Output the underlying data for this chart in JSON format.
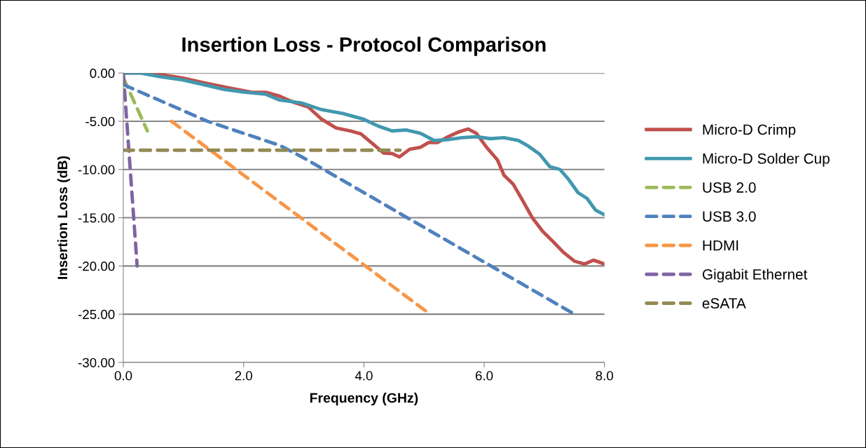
{
  "chart_data": {
    "type": "line",
    "title": "Insertion Loss - Protocol Comparison",
    "xlabel": "Frequency (GHz)",
    "ylabel": "Insertion Loss (dB)",
    "xlim": [
      0,
      8
    ],
    "xticks": [
      {
        "value": 0,
        "label": "0.0"
      },
      {
        "value": 2,
        "label": "2.0"
      },
      {
        "value": 4,
        "label": "4.0"
      },
      {
        "value": 6,
        "label": "6.0"
      },
      {
        "value": 8,
        "label": "8.0"
      }
    ],
    "ylim": [
      -30,
      0
    ],
    "yticks": [
      {
        "value": -30,
        "label": "-30.00"
      },
      {
        "value": -25,
        "label": "-25.00"
      },
      {
        "value": -20,
        "label": "-20.00"
      },
      {
        "value": -15,
        "label": "-15.00"
      },
      {
        "value": -10,
        "label": "-10.00"
      },
      {
        "value": -5,
        "label": "-5.00"
      },
      {
        "value": 0,
        "label": "0.00"
      }
    ],
    "grid": "y",
    "legend": "right",
    "marker": "none",
    "series": [
      {
        "name": "Micro-D Crimp",
        "color": "#c0504d",
        "line_style": "solid",
        "x": [
          0,
          0.45,
          0.98,
          1.33,
          1.8,
          2.14,
          2.37,
          2.6,
          2.84,
          3.07,
          3.3,
          3.54,
          3.77,
          3.95,
          4.12,
          4.33,
          4.47,
          4.59,
          4.76,
          4.94,
          5.08,
          5.23,
          5.4,
          5.58,
          5.73,
          5.87,
          6.04,
          6.22,
          6.33,
          6.48,
          6.62,
          6.8,
          6.97,
          7.15,
          7.32,
          7.5,
          7.67,
          7.82,
          8.0
        ],
        "values": [
          0,
          0,
          -0.5,
          -1.0,
          -1.6,
          -2.0,
          -2.0,
          -2.4,
          -3.05,
          -3.5,
          -4.8,
          -5.7,
          -6.0,
          -6.3,
          -7.2,
          -8.3,
          -8.35,
          -8.7,
          -7.9,
          -7.7,
          -7.2,
          -7.2,
          -6.6,
          -6.1,
          -5.8,
          -6.25,
          -7.7,
          -9.0,
          -10.6,
          -11.5,
          -13.0,
          -15.0,
          -16.4,
          -17.5,
          -18.6,
          -19.5,
          -19.8,
          -19.4,
          -19.8
        ]
      },
      {
        "name": "Micro-D Solder Cup",
        "color": "#4198af",
        "line_style": "solid",
        "x": [
          0,
          0.28,
          0.63,
          0.98,
          1.33,
          1.68,
          2.03,
          2.37,
          2.6,
          2.96,
          3.3,
          3.65,
          4.0,
          4.24,
          4.47,
          4.7,
          4.94,
          5.17,
          5.4,
          5.63,
          5.87,
          6.1,
          6.33,
          6.57,
          6.74,
          6.92,
          7.09,
          7.26,
          7.4,
          7.56,
          7.71,
          7.85,
          8.0
        ],
        "values": [
          0,
          0,
          -0.4,
          -0.7,
          -1.2,
          -1.7,
          -2.0,
          -2.2,
          -2.8,
          -3.1,
          -3.8,
          -4.2,
          -4.8,
          -5.5,
          -6.0,
          -5.9,
          -6.25,
          -7.0,
          -6.9,
          -6.7,
          -6.6,
          -6.8,
          -6.7,
          -7.0,
          -7.6,
          -8.4,
          -9.7,
          -10.0,
          -11.0,
          -12.4,
          -13.0,
          -14.2,
          -14.7
        ]
      },
      {
        "name": "USB 2.0",
        "color": "#9bbb59",
        "line_style": "dashed",
        "x": [
          0,
          0.4
        ],
        "values": [
          -0.5,
          -6
        ]
      },
      {
        "name": "USB 3.0",
        "color": "#4f81bd",
        "line_style": "dashed",
        "x": [
          0,
          1.4,
          2.6,
          3.0,
          7.5
        ],
        "values": [
          -1.2,
          -5.0,
          -7.5,
          -8.8,
          -25
        ]
      },
      {
        "name": "HDMI",
        "color": "#f79646",
        "line_style": "dashed",
        "x": [
          0.8,
          5.1
        ],
        "values": [
          -5,
          -25
        ]
      },
      {
        "name": "Gigabit Ethernet",
        "color": "#8064a2",
        "line_style": "dashed",
        "x": [
          0,
          0.23
        ],
        "values": [
          0,
          -20
        ]
      },
      {
        "name": "eSATA",
        "color": "#948a54",
        "line_style": "dashed",
        "x": [
          0,
          4.6
        ],
        "values": [
          -8,
          -8
        ]
      }
    ]
  }
}
